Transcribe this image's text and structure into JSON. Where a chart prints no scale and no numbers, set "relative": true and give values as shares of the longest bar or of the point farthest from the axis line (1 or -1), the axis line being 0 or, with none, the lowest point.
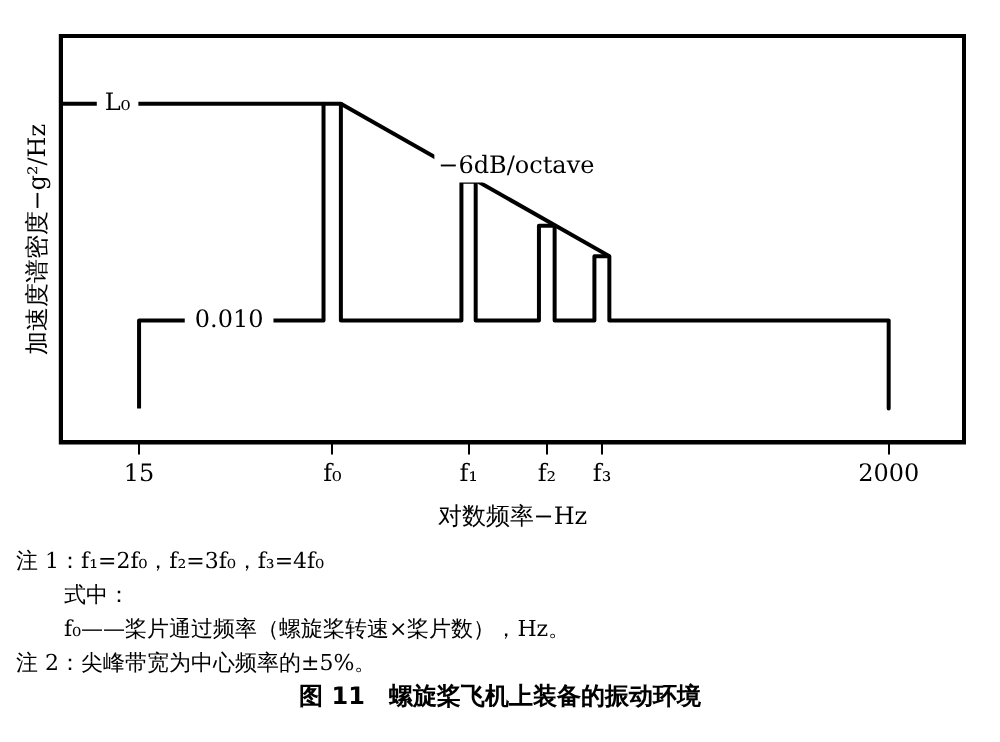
{
  "chart_data": {
    "type": "line",
    "relative": true,
    "log": "x",
    "grid": false,
    "legend": false,
    "xlabel": "对数频率−Hz",
    "ylabel": "加速度谱密度−g²/Hz",
    "title": "图 11　螺旋桨飞机上装备的振动环境",
    "xlim": [
      9,
      3270
    ],
    "xticks": [
      15,
      {
        "value": 53,
        "label": "f₀"
      },
      {
        "value": 129,
        "label": "f₁"
      },
      {
        "value": 215,
        "label": "f₂"
      },
      {
        "value": 308,
        "label": "f₃"
      },
      2000
    ],
    "series": [
      {
        "type": "line",
        "color": "#000000",
        "x": [
          15,
          15,
          50,
          50,
          56,
          56,
          123,
          123,
          135,
          135,
          204,
          204,
          226,
          226,
          293,
          293,
          323,
          323,
          2000,
          2000
        ],
        "values": [
          0.1,
          0.36,
          0.36,
          1,
          1,
          0.36,
          0.36,
          0.77,
          0.77,
          0.36,
          0.36,
          0.64,
          0.64,
          0.36,
          0.36,
          0.55,
          0.55,
          0.36,
          0.36,
          0.1
        ]
      },
      {
        "type": "line",
        "name": "−6dB/octave",
        "color": "#000000",
        "x": [
          56,
          323
        ],
        "values": [
          1,
          0.55
        ]
      }
    ],
    "ref_lines": [
      {
        "axis": "y",
        "value": 1,
        "label": "L₀",
        "color": "#000000"
      }
    ],
    "annotations": [
      {
        "text": "0.010",
        "x": 27,
        "y": 0.36
      },
      "注 1：f₁=2f₀，f₂=3f₀，f₃=4f₀",
      "式中：",
      "f₀——桨片通过频率（螺旋桨转速×桨片数），Hz。",
      "注 2：尖峰带宽为中心频率的±5%。"
    ]
  }
}
